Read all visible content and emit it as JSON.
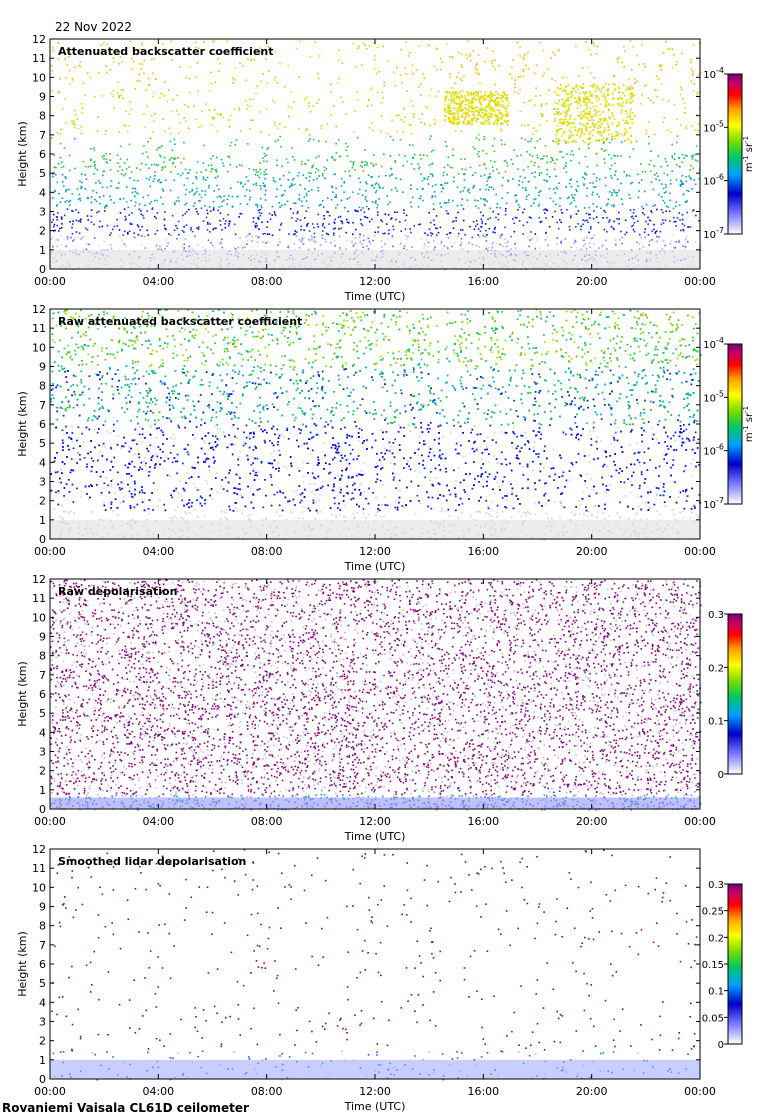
{
  "date": "22 Nov 2022",
  "footer": "Rovaniemi Vaisala CL61D ceilometer",
  "colors": {
    "background_speckle": "#d8d8d8",
    "panel_frame": "#000000",
    "colormap": [
      "#ffffff",
      "#4040ff",
      "#0000c8",
      "#00a0ff",
      "#00c864",
      "#78dc00",
      "#ffff00",
      "#ffa000",
      "#ff0000",
      "#c80064",
      "#780078"
    ]
  },
  "chart_data": [
    {
      "type": "heatmap",
      "title": "Attenuated backscatter coefficient",
      "xlabel": "Time (UTC)",
      "ylabel": "Height (km)",
      "x_ticks": [
        "00:00",
        "04:00",
        "08:00",
        "12:00",
        "16:00",
        "20:00",
        "00:00"
      ],
      "y_ticks": [
        "0",
        "1",
        "2",
        "3",
        "4",
        "5",
        "6",
        "7",
        "8",
        "9",
        "10",
        "11",
        "12"
      ],
      "xlim_hours": [
        0,
        24
      ],
      "ylim": [
        0,
        12
      ],
      "colorbar": {
        "type": "log",
        "ticks": [
          {
            "base": "10",
            "exp": "-4"
          },
          {
            "base": "10",
            "exp": "-5"
          },
          {
            "base": "10",
            "exp": "-6"
          },
          {
            "base": "10",
            "exp": "-7"
          }
        ],
        "unit": {
          "a": "m",
          "a_exp": "-1",
          "b": "sr",
          "b_exp": "-1"
        }
      },
      "features": [
        {
          "name": "cloud",
          "t_start": 14.5,
          "t_end": 16.9,
          "h_bottom": 7.6,
          "h_top": 9.3
        },
        {
          "name": "cloud",
          "t_start": 18.6,
          "t_end": 21.5,
          "h_bottom": 6.6,
          "h_top": 9.7
        },
        {
          "name": "boundary_layer",
          "h_top": 1.8
        }
      ]
    },
    {
      "type": "heatmap",
      "title": "Raw attenuated backscatter coefficient",
      "xlabel": "Time (UTC)",
      "ylabel": "Height (km)",
      "x_ticks": [
        "00:00",
        "04:00",
        "08:00",
        "12:00",
        "16:00",
        "20:00",
        "00:00"
      ],
      "y_ticks": [
        "0",
        "1",
        "2",
        "3",
        "4",
        "5",
        "6",
        "7",
        "8",
        "9",
        "10",
        "11",
        "12"
      ],
      "xlim_hours": [
        0,
        24
      ],
      "ylim": [
        0,
        12
      ],
      "colorbar": {
        "type": "log",
        "ticks": [
          {
            "base": "10",
            "exp": "-4"
          },
          {
            "base": "10",
            "exp": "-5"
          },
          {
            "base": "10",
            "exp": "-6"
          },
          {
            "base": "10",
            "exp": "-7"
          }
        ],
        "unit": {
          "a": "m",
          "a_exp": "-1",
          "b": "sr",
          "b_exp": "-1"
        }
      }
    },
    {
      "type": "heatmap",
      "title": "Raw depolarisation",
      "xlabel": "Time (UTC)",
      "ylabel": "Height (km)",
      "x_ticks": [
        "00:00",
        "04:00",
        "08:00",
        "12:00",
        "16:00",
        "20:00",
        "00:00"
      ],
      "y_ticks": [
        "0",
        "1",
        "2",
        "3",
        "4",
        "5",
        "6",
        "7",
        "8",
        "9",
        "10",
        "11",
        "12"
      ],
      "xlim_hours": [
        0,
        24
      ],
      "ylim": [
        0,
        12
      ],
      "colorbar": {
        "type": "linear",
        "ticks": [
          "0.3",
          "0.2",
          "0.1",
          "0"
        ]
      }
    },
    {
      "type": "heatmap",
      "title": "Smoothed lidar depolarisation",
      "xlabel": "Time (UTC)",
      "ylabel": "Height (km)",
      "x_ticks": [
        "00:00",
        "04:00",
        "08:00",
        "12:00",
        "16:00",
        "20:00",
        "00:00"
      ],
      "y_ticks": [
        "0",
        "1",
        "2",
        "3",
        "4",
        "5",
        "6",
        "7",
        "8",
        "9",
        "10",
        "11",
        "12"
      ],
      "xlim_hours": [
        0,
        24
      ],
      "ylim": [
        0,
        12
      ],
      "colorbar": {
        "type": "linear",
        "ticks": [
          "0.3",
          "0.25",
          "0.2",
          "0.15",
          "0.1",
          "0.05",
          "0"
        ]
      }
    }
  ]
}
